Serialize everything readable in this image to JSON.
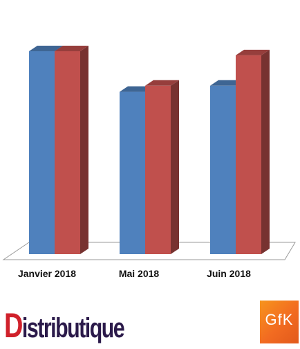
{
  "chart_data": {
    "type": "bar",
    "style": "3d-clustered-column",
    "categories": [
      "Janvier 2018",
      "Mai 2018",
      "Juin 2018"
    ],
    "series": [
      {
        "color": "#4f81bd",
        "values": [
          100,
          80,
          83
        ]
      },
      {
        "color": "#c0504d",
        "values": [
          100,
          83,
          98
        ]
      }
    ],
    "ylim": [
      0,
      100
    ],
    "grid": false,
    "legend": "none"
  },
  "branding": {
    "publisher_first_letter": "D",
    "publisher_rest": "istributique",
    "source_logo": "GfK"
  }
}
